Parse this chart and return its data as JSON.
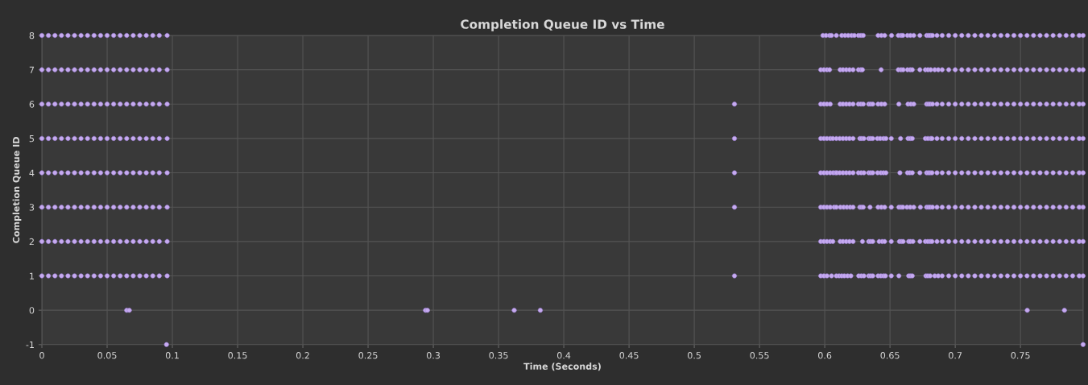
{
  "chart_data": {
    "type": "scatter",
    "title": "Completion Queue ID vs Time",
    "xlabel": "Time (Seconds)",
    "ylabel": "Completion Queue ID",
    "xlim": [
      0,
      0.798
    ],
    "ylim": [
      -1,
      8
    ],
    "xticks": [
      0,
      0.05,
      0.1,
      0.15,
      0.2,
      0.25,
      0.3,
      0.35,
      0.4,
      0.45,
      0.5,
      0.55,
      0.6,
      0.65,
      0.7,
      0.75
    ],
    "yticks": [
      -1,
      0,
      1,
      2,
      3,
      4,
      5,
      6,
      7,
      8
    ],
    "grid": true,
    "marker": "circle",
    "series": [
      {
        "color": "#c6aaf0",
        "x": [
          0,
          0.005,
          0.01,
          0.015,
          0.02,
          0.025,
          0.03,
          0.035,
          0.04,
          0.045,
          0.05,
          0.055,
          0.06,
          0.065,
          0.07,
          0.075,
          0.08,
          0.085,
          0.09,
          0.096,
          0.5986,
          0.601,
          0.6037,
          0.6052,
          0.6089,
          0.613,
          0.6155,
          0.618,
          0.6205,
          0.6227,
          0.6258,
          0.6277,
          0.6295,
          0.6409,
          0.6434,
          0.6459,
          0.6512,
          0.6564,
          0.6585,
          0.6599,
          0.6634,
          0.6657,
          0.6682,
          0.6729,
          0.6781,
          0.6797,
          0.6812,
          0.6826,
          0.686,
          0.69,
          0.695,
          0.7,
          0.705,
          0.71,
          0.715,
          0.72,
          0.725,
          0.73,
          0.735,
          0.74,
          0.745,
          0.75,
          0.755,
          0.76,
          0.765,
          0.77,
          0.775,
          0.78,
          0.785,
          0.79,
          0.795,
          0.798
        ],
        "values": [
          8,
          8,
          8,
          8,
          8,
          8,
          8,
          8,
          8,
          8,
          8,
          8,
          8,
          8,
          8,
          8,
          8,
          8,
          8,
          8,
          8,
          8,
          8,
          8,
          8,
          8,
          8,
          8,
          8,
          8,
          8,
          8,
          8,
          8,
          8,
          8,
          8,
          8,
          8,
          8,
          8,
          8,
          8,
          8,
          8,
          8,
          8,
          8,
          8,
          8,
          8,
          8,
          8,
          8,
          8,
          8,
          8,
          8,
          8,
          8,
          8,
          8,
          8,
          8,
          8,
          8,
          8,
          8,
          8,
          8,
          8,
          8
        ]
      },
      {
        "color": "#c6aaf0",
        "x": [
          0,
          0.005,
          0.01,
          0.015,
          0.02,
          0.025,
          0.03,
          0.035,
          0.04,
          0.045,
          0.05,
          0.055,
          0.06,
          0.065,
          0.07,
          0.075,
          0.08,
          0.085,
          0.09,
          0.096,
          0.5969,
          0.5993,
          0.6017,
          0.6037,
          0.6118,
          0.614,
          0.6165,
          0.619,
          0.6217,
          0.6258,
          0.6277,
          0.6289,
          0.6432,
          0.6564,
          0.6585,
          0.6601,
          0.6634,
          0.6655,
          0.6671,
          0.6729,
          0.6771,
          0.6791,
          0.6812,
          0.6843,
          0.687,
          0.69,
          0.695,
          0.7,
          0.705,
          0.71,
          0.715,
          0.72,
          0.725,
          0.73,
          0.735,
          0.74,
          0.745,
          0.75,
          0.755,
          0.76,
          0.765,
          0.77,
          0.775,
          0.78,
          0.785,
          0.79,
          0.795,
          0.798
        ],
        "values": [
          7,
          7,
          7,
          7,
          7,
          7,
          7,
          7,
          7,
          7,
          7,
          7,
          7,
          7,
          7,
          7,
          7,
          7,
          7,
          7,
          7,
          7,
          7,
          7,
          7,
          7,
          7,
          7,
          7,
          7,
          7,
          7,
          7,
          7,
          7,
          7,
          7,
          7,
          7,
          7,
          7,
          7,
          7,
          7,
          7,
          7,
          7,
          7,
          7,
          7,
          7,
          7,
          7,
          7,
          7,
          7,
          7,
          7,
          7,
          7,
          7,
          7,
          7,
          7,
          7,
          7,
          7,
          7
        ]
      },
      {
        "color": "#c6aaf0",
        "x": [
          0,
          0.005,
          0.01,
          0.015,
          0.02,
          0.025,
          0.03,
          0.035,
          0.04,
          0.045,
          0.05,
          0.055,
          0.06,
          0.065,
          0.07,
          0.075,
          0.08,
          0.085,
          0.09,
          0.096,
          0.5308,
          0.5969,
          0.5993,
          0.6017,
          0.6042,
          0.6118,
          0.614,
          0.6165,
          0.619,
          0.6217,
          0.6258,
          0.6277,
          0.6295,
          0.6337,
          0.6352,
          0.6368,
          0.6409,
          0.6434,
          0.6459,
          0.6568,
          0.6638,
          0.666,
          0.6682,
          0.6781,
          0.6795,
          0.6808,
          0.6826,
          0.686,
          0.69,
          0.695,
          0.7,
          0.705,
          0.71,
          0.715,
          0.72,
          0.725,
          0.73,
          0.735,
          0.74,
          0.745,
          0.75,
          0.755,
          0.76,
          0.765,
          0.77,
          0.775,
          0.78,
          0.785,
          0.79,
          0.795,
          0.798
        ],
        "values": [
          6,
          6,
          6,
          6,
          6,
          6,
          6,
          6,
          6,
          6,
          6,
          6,
          6,
          6,
          6,
          6,
          6,
          6,
          6,
          6,
          6,
          6,
          6,
          6,
          6,
          6,
          6,
          6,
          6,
          6,
          6,
          6,
          6,
          6,
          6,
          6,
          6,
          6,
          6,
          6,
          6,
          6,
          6,
          6,
          6,
          6,
          6,
          6,
          6,
          6,
          6,
          6,
          6,
          6,
          6,
          6,
          6,
          6,
          6,
          6,
          6,
          6,
          6,
          6,
          6,
          6,
          6,
          6,
          6,
          6,
          6
        ]
      },
      {
        "color": "#c6aaf0",
        "x": [
          0,
          0.005,
          0.01,
          0.015,
          0.02,
          0.025,
          0.03,
          0.035,
          0.04,
          0.045,
          0.05,
          0.055,
          0.06,
          0.065,
          0.07,
          0.075,
          0.08,
          0.085,
          0.09,
          0.096,
          0.5308,
          0.5969,
          0.5993,
          0.6017,
          0.6042,
          0.6062,
          0.6089,
          0.6115,
          0.614,
          0.6165,
          0.619,
          0.6217,
          0.6269,
          0.6283,
          0.63,
          0.6337,
          0.6352,
          0.6368,
          0.6403,
          0.6425,
          0.645,
          0.6469,
          0.651,
          0.6581,
          0.6638,
          0.6655,
          0.6671,
          0.6771,
          0.6791,
          0.6812,
          0.6822,
          0.686,
          0.69,
          0.695,
          0.7,
          0.705,
          0.71,
          0.715,
          0.72,
          0.725,
          0.73,
          0.735,
          0.74,
          0.745,
          0.75,
          0.755,
          0.76,
          0.765,
          0.77,
          0.775,
          0.78,
          0.785,
          0.79,
          0.795,
          0.798
        ],
        "values": [
          5,
          5,
          5,
          5,
          5,
          5,
          5,
          5,
          5,
          5,
          5,
          5,
          5,
          5,
          5,
          5,
          5,
          5,
          5,
          5,
          5,
          5,
          5,
          5,
          5,
          5,
          5,
          5,
          5,
          5,
          5,
          5,
          5,
          5,
          5,
          5,
          5,
          5,
          5,
          5,
          5,
          5,
          5,
          5,
          5,
          5,
          5,
          5,
          5,
          5,
          5,
          5,
          5,
          5,
          5,
          5,
          5,
          5,
          5,
          5,
          5,
          5,
          5,
          5,
          5,
          5,
          5,
          5,
          5,
          5,
          5,
          5,
          5,
          5,
          5
        ]
      },
      {
        "color": "#c6aaf0",
        "x": [
          0,
          0.005,
          0.01,
          0.015,
          0.02,
          0.025,
          0.03,
          0.035,
          0.04,
          0.045,
          0.05,
          0.055,
          0.06,
          0.065,
          0.07,
          0.075,
          0.08,
          0.085,
          0.09,
          0.096,
          0.5308,
          0.5969,
          0.5993,
          0.6017,
          0.6042,
          0.6065,
          0.6083,
          0.6093,
          0.6115,
          0.614,
          0.6165,
          0.619,
          0.6217,
          0.6258,
          0.6279,
          0.63,
          0.6337,
          0.6352,
          0.6368,
          0.6405,
          0.643,
          0.645,
          0.6469,
          0.6576,
          0.6634,
          0.6652,
          0.6671,
          0.6729,
          0.6781,
          0.6795,
          0.6808,
          0.6822,
          0.686,
          0.69,
          0.695,
          0.7,
          0.705,
          0.71,
          0.715,
          0.72,
          0.725,
          0.73,
          0.735,
          0.74,
          0.745,
          0.75,
          0.755,
          0.76,
          0.765,
          0.77,
          0.775,
          0.78,
          0.785,
          0.79,
          0.795,
          0.798
        ],
        "values": [
          4,
          4,
          4,
          4,
          4,
          4,
          4,
          4,
          4,
          4,
          4,
          4,
          4,
          4,
          4,
          4,
          4,
          4,
          4,
          4,
          4,
          4,
          4,
          4,
          4,
          4,
          4,
          4,
          4,
          4,
          4,
          4,
          4,
          4,
          4,
          4,
          4,
          4,
          4,
          4,
          4,
          4,
          4,
          4,
          4,
          4,
          4,
          4,
          4,
          4,
          4,
          4,
          4,
          4,
          4,
          4,
          4,
          4,
          4,
          4,
          4,
          4,
          4,
          4,
          4,
          4,
          4,
          4,
          4,
          4,
          4,
          4,
          4,
          4,
          4,
          4
        ]
      },
      {
        "color": "#c6aaf0",
        "x": [
          0,
          0.005,
          0.01,
          0.015,
          0.02,
          0.025,
          0.03,
          0.035,
          0.04,
          0.045,
          0.05,
          0.055,
          0.06,
          0.065,
          0.07,
          0.075,
          0.08,
          0.085,
          0.09,
          0.096,
          0.5308,
          0.5969,
          0.5993,
          0.6017,
          0.6042,
          0.6072,
          0.6089,
          0.612,
          0.6145,
          0.617,
          0.6195,
          0.6217,
          0.6269,
          0.6282,
          0.6295,
          0.6347,
          0.6409,
          0.6434,
          0.6459,
          0.651,
          0.6568,
          0.6585,
          0.6599,
          0.663,
          0.6655,
          0.6682,
          0.6733,
          0.6781,
          0.6795,
          0.6808,
          0.6826,
          0.686,
          0.69,
          0.695,
          0.7,
          0.705,
          0.71,
          0.715,
          0.72,
          0.725,
          0.73,
          0.735,
          0.74,
          0.745,
          0.75,
          0.755,
          0.76,
          0.765,
          0.77,
          0.775,
          0.78,
          0.785,
          0.79,
          0.795,
          0.798
        ],
        "values": [
          3,
          3,
          3,
          3,
          3,
          3,
          3,
          3,
          3,
          3,
          3,
          3,
          3,
          3,
          3,
          3,
          3,
          3,
          3,
          3,
          3,
          3,
          3,
          3,
          3,
          3,
          3,
          3,
          3,
          3,
          3,
          3,
          3,
          3,
          3,
          3,
          3,
          3,
          3,
          3,
          3,
          3,
          3,
          3,
          3,
          3,
          3,
          3,
          3,
          3,
          3,
          3,
          3,
          3,
          3,
          3,
          3,
          3,
          3,
          3,
          3,
          3,
          3,
          3,
          3,
          3,
          3,
          3,
          3,
          3,
          3,
          3,
          3,
          3,
          3
        ]
      },
      {
        "color": "#c6aaf0",
        "x": [
          0,
          0.005,
          0.01,
          0.015,
          0.02,
          0.025,
          0.03,
          0.035,
          0.04,
          0.045,
          0.05,
          0.055,
          0.06,
          0.065,
          0.07,
          0.075,
          0.08,
          0.085,
          0.09,
          0.096,
          0.5969,
          0.5993,
          0.6017,
          0.6042,
          0.6062,
          0.6118,
          0.614,
          0.6165,
          0.619,
          0.6217,
          0.6289,
          0.6337,
          0.6352,
          0.6368,
          0.6417,
          0.644,
          0.6459,
          0.651,
          0.6572,
          0.6587,
          0.6601,
          0.6643,
          0.6657,
          0.6676,
          0.6729,
          0.6771,
          0.679,
          0.6808,
          0.6822,
          0.686,
          0.69,
          0.695,
          0.7,
          0.705,
          0.71,
          0.715,
          0.72,
          0.725,
          0.73,
          0.735,
          0.74,
          0.745,
          0.75,
          0.755,
          0.76,
          0.765,
          0.77,
          0.775,
          0.78,
          0.785,
          0.79,
          0.795,
          0.798
        ],
        "values": [
          2,
          2,
          2,
          2,
          2,
          2,
          2,
          2,
          2,
          2,
          2,
          2,
          2,
          2,
          2,
          2,
          2,
          2,
          2,
          2,
          2,
          2,
          2,
          2,
          2,
          2,
          2,
          2,
          2,
          2,
          2,
          2,
          2,
          2,
          2,
          2,
          2,
          2,
          2,
          2,
          2,
          2,
          2,
          2,
          2,
          2,
          2,
          2,
          2,
          2,
          2,
          2,
          2,
          2,
          2,
          2,
          2,
          2,
          2,
          2,
          2,
          2,
          2,
          2,
          2,
          2,
          2,
          2,
          2,
          2,
          2,
          2,
          2
        ]
      },
      {
        "color": "#c6aaf0",
        "x": [
          0,
          0.005,
          0.01,
          0.015,
          0.02,
          0.025,
          0.03,
          0.035,
          0.04,
          0.045,
          0.05,
          0.055,
          0.06,
          0.065,
          0.07,
          0.075,
          0.08,
          0.085,
          0.09,
          0.096,
          0.5308,
          0.5969,
          0.5993,
          0.6017,
          0.6052,
          0.6089,
          0.611,
          0.613,
          0.615,
          0.6175,
          0.62,
          0.626,
          0.628,
          0.63,
          0.6337,
          0.6352,
          0.6368,
          0.6409,
          0.643,
          0.645,
          0.6465,
          0.651,
          0.6568,
          0.6643,
          0.6657,
          0.6671,
          0.6775,
          0.679,
          0.6808,
          0.6843,
          0.687,
          0.69,
          0.695,
          0.7,
          0.705,
          0.71,
          0.715,
          0.72,
          0.725,
          0.73,
          0.735,
          0.74,
          0.745,
          0.75,
          0.755,
          0.76,
          0.765,
          0.77,
          0.775,
          0.78,
          0.785,
          0.79,
          0.795,
          0.798
        ],
        "values": [
          1,
          1,
          1,
          1,
          1,
          1,
          1,
          1,
          1,
          1,
          1,
          1,
          1,
          1,
          1,
          1,
          1,
          1,
          1,
          1,
          1,
          1,
          1,
          1,
          1,
          1,
          1,
          1,
          1,
          1,
          1,
          1,
          1,
          1,
          1,
          1,
          1,
          1,
          1,
          1,
          1,
          1,
          1,
          1,
          1,
          1,
          1,
          1,
          1,
          1,
          1,
          1,
          1,
          1,
          1,
          1,
          1,
          1,
          1,
          1,
          1,
          1,
          1,
          1,
          1,
          1,
          1,
          1,
          1,
          1,
          1,
          1,
          1,
          1
        ]
      },
      {
        "color": "#c6aaf0",
        "x": [
          0.065,
          0.067,
          0.294,
          0.2955,
          0.362,
          0.382,
          0.7552,
          0.7837
        ],
        "values": [
          0,
          0,
          0,
          0,
          0,
          0,
          0,
          0
        ]
      },
      {
        "color": "#c6aaf0",
        "x": [
          0.0955,
          0.798
        ],
        "values": [
          -1,
          -1
        ]
      }
    ]
  }
}
